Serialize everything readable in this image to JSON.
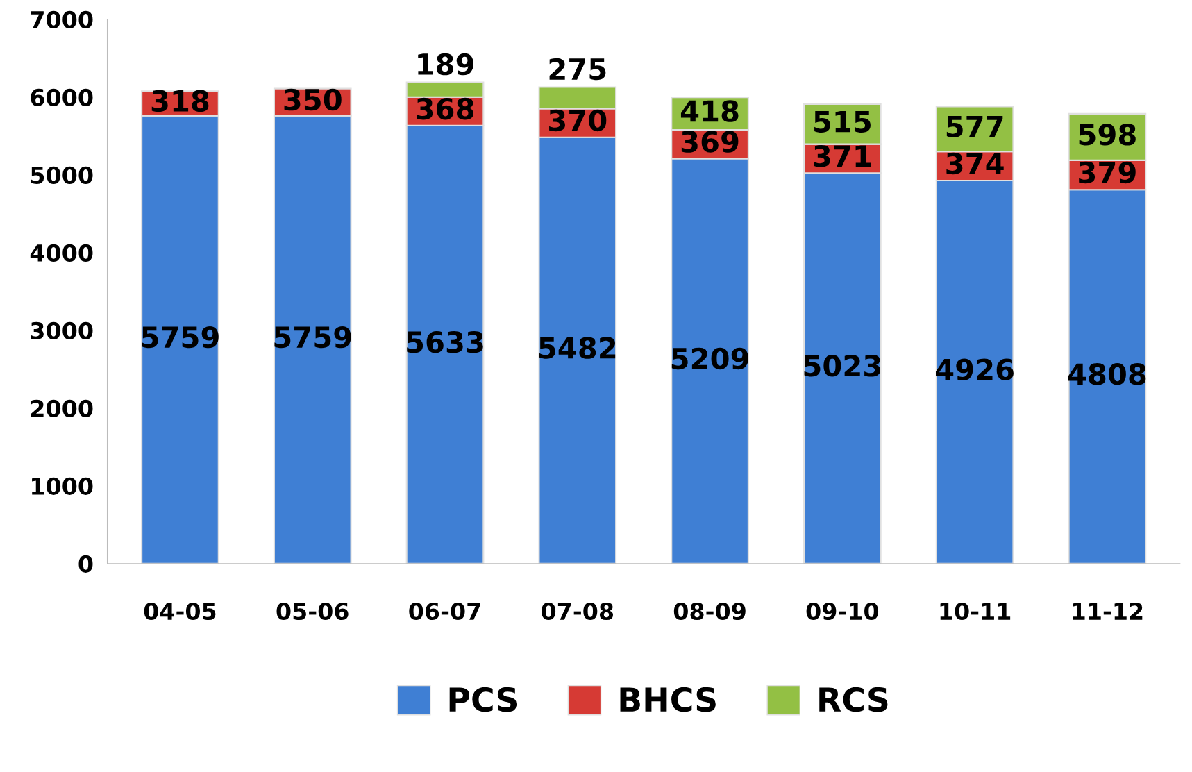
{
  "chart_data": {
    "type": "bar",
    "stacked": true,
    "categories": [
      "04-05",
      "05-06",
      "06-07",
      "07-08",
      "08-09",
      "09-10",
      "10-11",
      "11-12"
    ],
    "series": [
      {
        "name": "PCS",
        "color": "#3f7fd4",
        "values": [
          5759,
          5759,
          5633,
          5482,
          5209,
          5023,
          4926,
          4808
        ]
      },
      {
        "name": "BHCS",
        "color": "#d63a34",
        "values": [
          318,
          350,
          368,
          370,
          369,
          371,
          374,
          379
        ]
      },
      {
        "name": "RCS",
        "color": "#93c044",
        "values": [
          null,
          null,
          189,
          275,
          418,
          515,
          577,
          598
        ]
      }
    ],
    "ylim": [
      0,
      7000
    ],
    "yticks": [
      0,
      1000,
      2000,
      3000,
      4000,
      5000,
      6000,
      7000
    ],
    "data_labels": true,
    "legend": "bottom",
    "grid": false
  }
}
